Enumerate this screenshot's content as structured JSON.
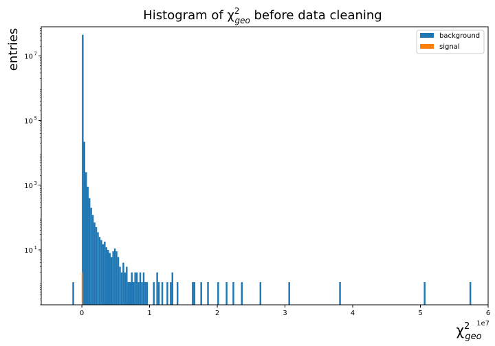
{
  "chart_data": {
    "type": "bar",
    "title": "Histogram of χ²geo before data cleaning",
    "title_parts": {
      "pre": "Histogram of ",
      "sym": "χ",
      "sup": "2",
      "sub": "geo",
      "post": " before data cleaning"
    },
    "xlabel": {
      "sym": "χ",
      "sup": "2",
      "sub": "geo"
    },
    "ylabel": "entries",
    "x_offset_label": "1e7",
    "x_scale": "linear",
    "y_scale": "log",
    "xlim": [
      -0.6,
      6.0
    ],
    "ylim_log10": [
      -0.7,
      7.9
    ],
    "xticks": [
      {
        "v": 0,
        "label": "0"
      },
      {
        "v": 1,
        "label": "1"
      },
      {
        "v": 2,
        "label": "2"
      },
      {
        "v": 3,
        "label": "3"
      },
      {
        "v": 4,
        "label": "4"
      },
      {
        "v": 5,
        "label": "5"
      },
      {
        "v": 6,
        "label": "6"
      }
    ],
    "yticks": [
      {
        "e": 1,
        "base": "10",
        "exp": "1"
      },
      {
        "e": 3,
        "base": "10",
        "exp": "3"
      },
      {
        "e": 5,
        "base": "10",
        "exp": "5"
      },
      {
        "e": 7,
        "base": "10",
        "exp": "7"
      }
    ],
    "legend": {
      "position": "upper right"
    },
    "series": [
      {
        "name": "background",
        "color": "#1f77b4",
        "bin_width": 0.025,
        "bins": [
          [
            -0.14,
            1
          ],
          [
            0.0,
            45000000
          ],
          [
            0.025,
            22000
          ],
          [
            0.05,
            2500
          ],
          [
            0.075,
            900
          ],
          [
            0.1,
            400
          ],
          [
            0.125,
            200
          ],
          [
            0.15,
            120
          ],
          [
            0.175,
            70
          ],
          [
            0.2,
            50
          ],
          [
            0.225,
            35
          ],
          [
            0.25,
            25
          ],
          [
            0.275,
            20
          ],
          [
            0.3,
            15
          ],
          [
            0.325,
            18
          ],
          [
            0.35,
            12
          ],
          [
            0.375,
            10
          ],
          [
            0.4,
            8
          ],
          [
            0.425,
            6
          ],
          [
            0.45,
            9
          ],
          [
            0.475,
            11
          ],
          [
            0.5,
            9
          ],
          [
            0.525,
            6
          ],
          [
            0.55,
            3
          ],
          [
            0.575,
            2
          ],
          [
            0.6,
            4
          ],
          [
            0.625,
            2
          ],
          [
            0.65,
            3
          ],
          [
            0.675,
            1
          ],
          [
            0.7,
            1
          ],
          [
            0.725,
            2
          ],
          [
            0.75,
            1
          ],
          [
            0.775,
            2
          ],
          [
            0.8,
            2
          ],
          [
            0.825,
            1
          ],
          [
            0.85,
            2
          ],
          [
            0.875,
            1
          ],
          [
            0.9,
            2
          ],
          [
            0.925,
            1
          ],
          [
            0.95,
            1
          ],
          [
            1.05,
            1
          ],
          [
            1.1,
            2
          ],
          [
            1.125,
            1
          ],
          [
            1.175,
            1
          ],
          [
            1.25,
            1
          ],
          [
            1.3,
            1
          ],
          [
            1.325,
            2
          ],
          [
            1.4,
            1
          ],
          [
            1.625,
            1
          ],
          [
            1.65,
            1
          ],
          [
            1.75,
            1
          ],
          [
            1.85,
            1
          ],
          [
            2.0,
            1
          ],
          [
            2.125,
            1
          ],
          [
            2.225,
            1
          ],
          [
            2.35,
            1
          ],
          [
            2.625,
            1
          ],
          [
            3.05,
            1
          ],
          [
            3.8,
            1
          ],
          [
            5.05,
            1
          ],
          [
            5.725,
            1
          ]
        ]
      },
      {
        "name": "signal",
        "color": "#ff7f0e",
        "bin_width": 0.006,
        "bins": [
          [
            -0.003,
            2
          ]
        ]
      }
    ]
  }
}
